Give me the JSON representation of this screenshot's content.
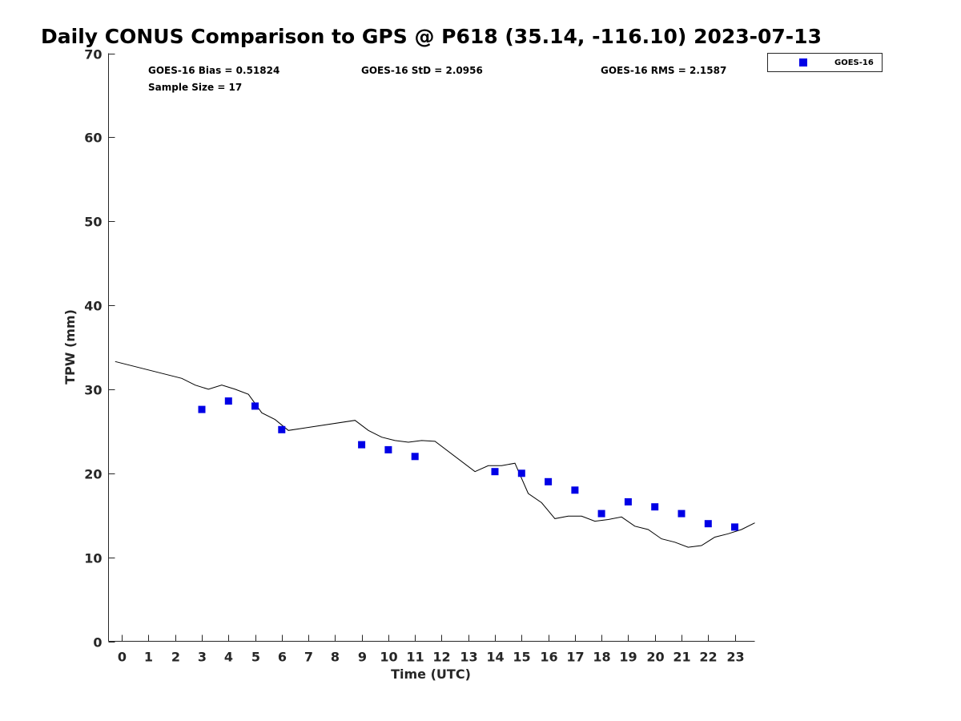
{
  "chart_data": {
    "type": "scatter",
    "title": "Daily CONUS Comparison to GPS @ P618 (35.14, -116.10) 2023-07-13",
    "xlabel": "Time (UTC)",
    "ylabel": "TPW (mm)",
    "xlim": [
      -0.5,
      23.75
    ],
    "ylim": [
      0,
      70
    ],
    "xticks": [
      0,
      1,
      2,
      3,
      4,
      5,
      6,
      7,
      8,
      9,
      10,
      11,
      12,
      13,
      14,
      15,
      16,
      17,
      18,
      19,
      20,
      21,
      22,
      23
    ],
    "yticks": [
      0,
      10,
      20,
      30,
      40,
      50,
      60,
      70
    ],
    "grid": false,
    "legend": {
      "placement": "top-right, outside plot",
      "entries": [
        "GOES-16"
      ]
    },
    "stats": {
      "bias": "GOES-16 Bias = 0.51824",
      "std": "GOES-16 StD = 2.0956",
      "rms": "GOES-16 RMS = 2.1587",
      "sample_size": "Sample Size = 17"
    },
    "series": [
      {
        "name": "GOES-16",
        "kind": "scatter",
        "marker": "square",
        "color": "#0000e6",
        "x": [
          3,
          4,
          5,
          6,
          9,
          10,
          11,
          14,
          15,
          16,
          17,
          18,
          19,
          20,
          21,
          22,
          23
        ],
        "y": [
          27.6,
          28.6,
          28.0,
          25.2,
          23.4,
          22.8,
          22.0,
          20.2,
          20.0,
          19.0,
          18.0,
          15.2,
          16.6,
          16.0,
          15.2,
          14.0,
          13.6
        ]
      },
      {
        "kind": "line",
        "color": "#000000",
        "x": [
          -0.25,
          2.25,
          2.75,
          3.25,
          3.75,
          4.25,
          4.75,
          5.25,
          5.75,
          6.25,
          8.75,
          9.25,
          9.75,
          10.25,
          10.75,
          11.25,
          11.75,
          13.25,
          13.75,
          14.25,
          14.75,
          15.25,
          15.75,
          16.25,
          16.75,
          17.25,
          17.75,
          18.25,
          18.75,
          19.25,
          19.75,
          20.25,
          20.75,
          21.25,
          21.75,
          22.25,
          22.75,
          23.25,
          23.75
        ],
        "y": [
          33.3,
          31.3,
          30.5,
          30.0,
          30.5,
          30.0,
          29.4,
          27.2,
          26.4,
          25.1,
          26.3,
          25.1,
          24.3,
          23.9,
          23.7,
          23.9,
          23.8,
          20.2,
          20.9,
          20.9,
          21.2,
          17.6,
          16.5,
          14.6,
          14.9,
          14.9,
          14.3,
          14.5,
          14.8,
          13.7,
          13.3,
          12.2,
          11.8,
          11.2,
          11.4,
          12.4,
          12.8,
          13.3,
          14.1
        ]
      }
    ]
  }
}
